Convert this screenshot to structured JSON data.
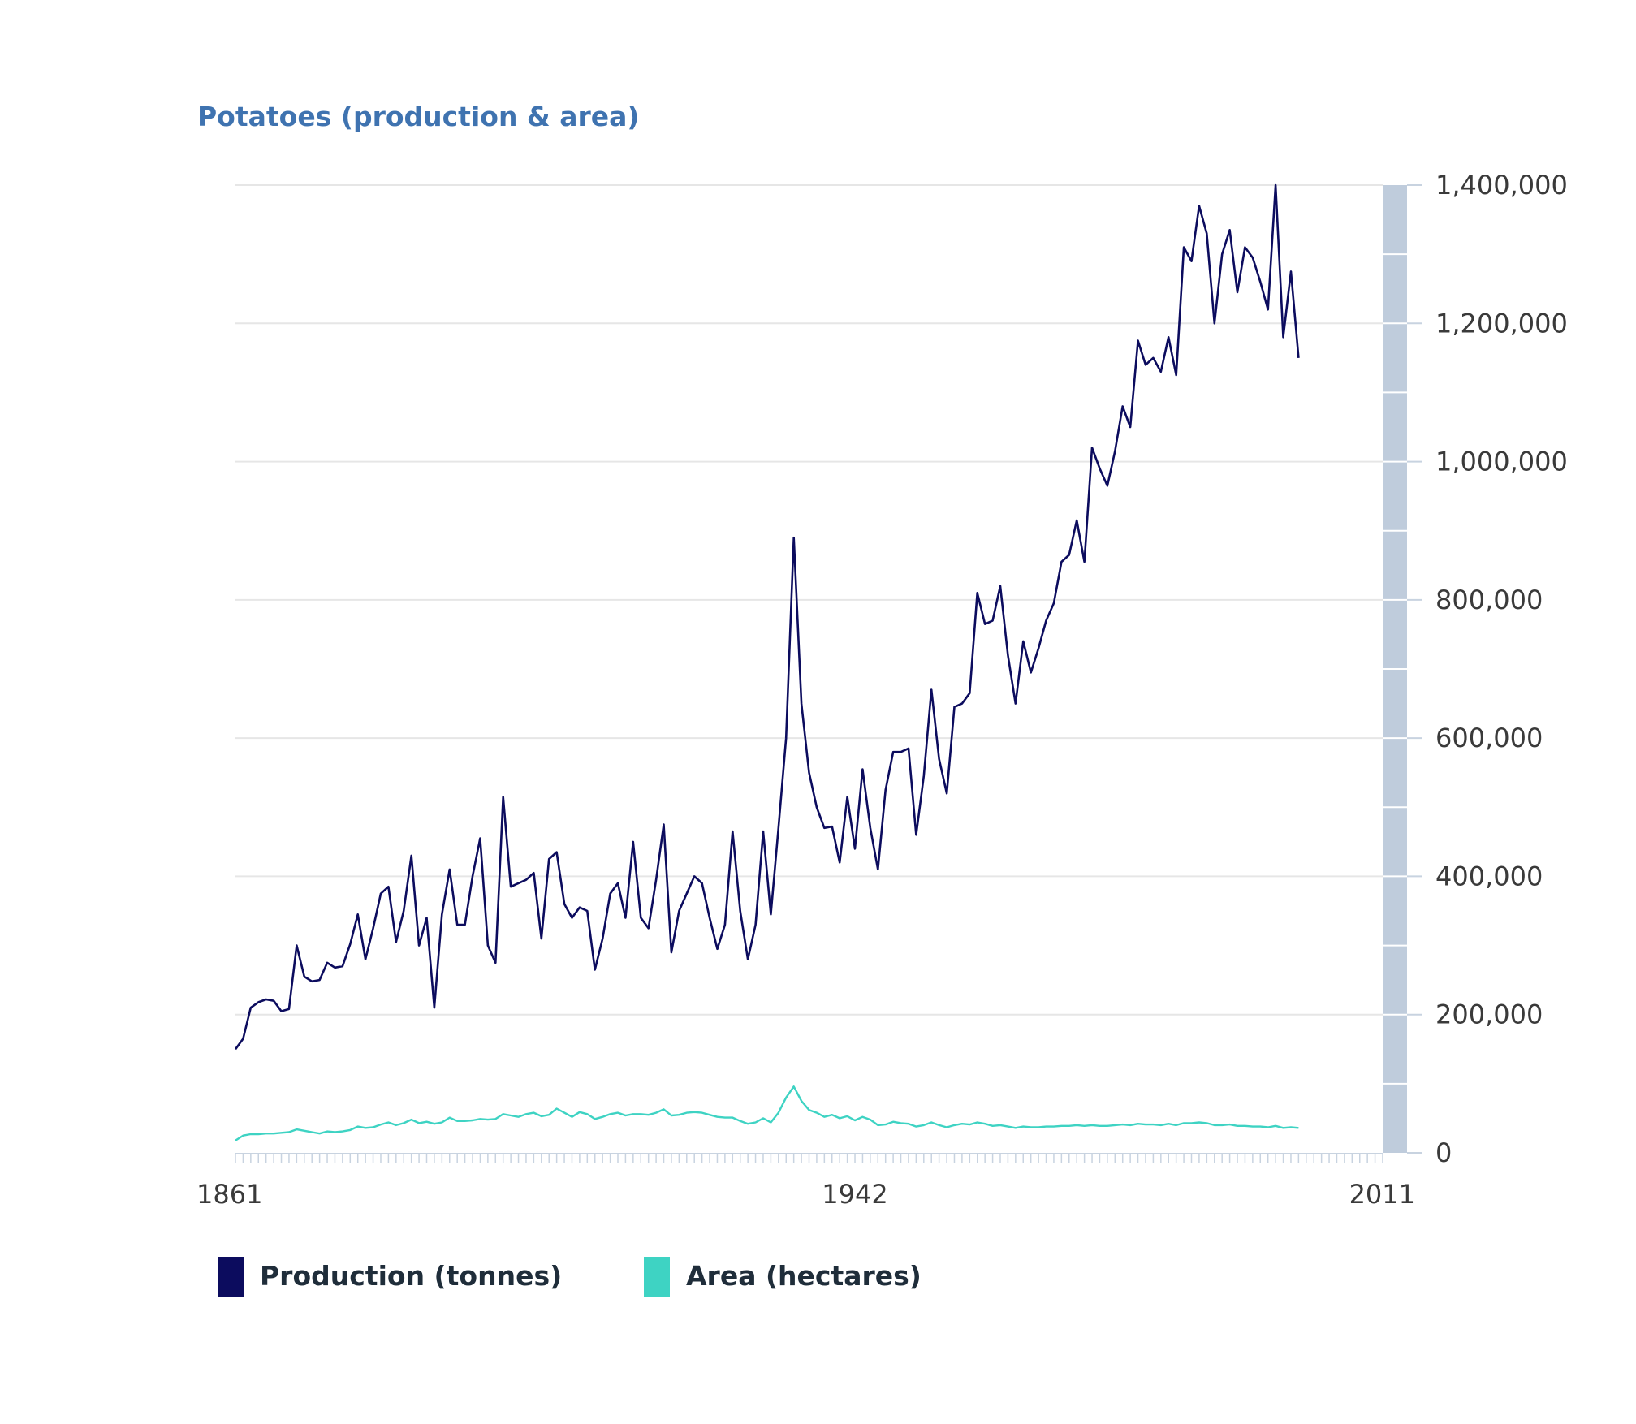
{
  "chart_data": {
    "type": "line",
    "title": "Potatoes (production & area)",
    "xlabel": "",
    "ylabel": "",
    "x_start": 1861,
    "x_end": 2011,
    "ylim": [
      0,
      1400000
    ],
    "y_ticks": [
      0,
      200000,
      400000,
      600000,
      800000,
      1000000,
      1200000,
      1400000
    ],
    "y_tick_labels": [
      "0",
      "200,000",
      "400,000",
      "600,000",
      "800,000",
      "1,000,000",
      "1,200,000",
      "1,400,000"
    ],
    "x_tick_labels": [
      {
        "label": "1861",
        "year": 1861
      },
      {
        "label": "1942",
        "year": 1942
      },
      {
        "label": "2011",
        "year": 2011
      }
    ],
    "grid": true,
    "legend_position": "bottom-left",
    "series": [
      {
        "name": "Production (tonnes)",
        "color": "#0c0c5e",
        "points": [
          [
            1861,
            150000
          ],
          [
            1862,
            165000
          ],
          [
            1863,
            210000
          ],
          [
            1864,
            218000
          ],
          [
            1865,
            222000
          ],
          [
            1866,
            220000
          ],
          [
            1867,
            205000
          ],
          [
            1868,
            208000
          ],
          [
            1869,
            300000
          ],
          [
            1870,
            255000
          ],
          [
            1871,
            248000
          ],
          [
            1872,
            250000
          ],
          [
            1873,
            275000
          ],
          [
            1874,
            268000
          ],
          [
            1875,
            270000
          ],
          [
            1876,
            302000
          ],
          [
            1877,
            345000
          ],
          [
            1878,
            280000
          ],
          [
            1879,
            325000
          ],
          [
            1880,
            375000
          ],
          [
            1881,
            385000
          ],
          [
            1882,
            305000
          ],
          [
            1883,
            350000
          ],
          [
            1884,
            430000
          ],
          [
            1885,
            300000
          ],
          [
            1886,
            340000
          ],
          [
            1887,
            210000
          ],
          [
            1888,
            345000
          ],
          [
            1889,
            410000
          ],
          [
            1890,
            330000
          ],
          [
            1891,
            330000
          ],
          [
            1892,
            400000
          ],
          [
            1893,
            455000
          ],
          [
            1894,
            300000
          ],
          [
            1895,
            275000
          ],
          [
            1896,
            515000
          ],
          [
            1897,
            385000
          ],
          [
            1898,
            390000
          ],
          [
            1899,
            395000
          ],
          [
            1900,
            405000
          ],
          [
            1901,
            310000
          ],
          [
            1902,
            425000
          ],
          [
            1903,
            435000
          ],
          [
            1904,
            360000
          ],
          [
            1905,
            340000
          ],
          [
            1906,
            355000
          ],
          [
            1907,
            350000
          ],
          [
            1908,
            265000
          ],
          [
            1909,
            310000
          ],
          [
            1910,
            375000
          ],
          [
            1911,
            390000
          ],
          [
            1912,
            340000
          ],
          [
            1913,
            450000
          ],
          [
            1914,
            340000
          ],
          [
            1915,
            325000
          ],
          [
            1916,
            395000
          ],
          [
            1917,
            475000
          ],
          [
            1918,
            290000
          ],
          [
            1919,
            350000
          ],
          [
            1920,
            375000
          ],
          [
            1921,
            400000
          ],
          [
            1922,
            390000
          ],
          [
            1923,
            340000
          ],
          [
            1924,
            295000
          ],
          [
            1925,
            330000
          ],
          [
            1926,
            465000
          ],
          [
            1927,
            350000
          ],
          [
            1928,
            280000
          ],
          [
            1929,
            330000
          ],
          [
            1930,
            465000
          ],
          [
            1931,
            345000
          ],
          [
            1932,
            470000
          ],
          [
            1933,
            600000
          ],
          [
            1934,
            890000
          ],
          [
            1935,
            650000
          ],
          [
            1936,
            550000
          ],
          [
            1937,
            500000
          ],
          [
            1938,
            470000
          ],
          [
            1939,
            472000
          ],
          [
            1940,
            420000
          ],
          [
            1941,
            515000
          ],
          [
            1942,
            440000
          ],
          [
            1943,
            555000
          ],
          [
            1944,
            470000
          ],
          [
            1945,
            410000
          ],
          [
            1946,
            525000
          ],
          [
            1947,
            580000
          ],
          [
            1948,
            580000
          ],
          [
            1949,
            585000
          ],
          [
            1950,
            460000
          ],
          [
            1951,
            545000
          ],
          [
            1952,
            670000
          ],
          [
            1953,
            570000
          ],
          [
            1954,
            520000
          ],
          [
            1955,
            645000
          ],
          [
            1956,
            650000
          ],
          [
            1957,
            665000
          ],
          [
            1958,
            810000
          ],
          [
            1959,
            765000
          ],
          [
            1960,
            770000
          ],
          [
            1961,
            820000
          ],
          [
            1962,
            720000
          ],
          [
            1963,
            650000
          ],
          [
            1964,
            740000
          ],
          [
            1965,
            695000
          ],
          [
            1966,
            730000
          ],
          [
            1967,
            770000
          ],
          [
            1968,
            795000
          ],
          [
            1969,
            855000
          ],
          [
            1970,
            865000
          ],
          [
            1971,
            915000
          ],
          [
            1972,
            855000
          ],
          [
            1973,
            1020000
          ],
          [
            1974,
            990000
          ],
          [
            1975,
            965000
          ],
          [
            1976,
            1015000
          ],
          [
            1977,
            1080000
          ],
          [
            1978,
            1050000
          ],
          [
            1979,
            1175000
          ],
          [
            1980,
            1140000
          ],
          [
            1981,
            1150000
          ],
          [
            1982,
            1130000
          ],
          [
            1983,
            1180000
          ],
          [
            1984,
            1125000
          ],
          [
            1985,
            1310000
          ],
          [
            1986,
            1290000
          ],
          [
            1987,
            1370000
          ],
          [
            1988,
            1330000
          ],
          [
            1989,
            1200000
          ],
          [
            1990,
            1300000
          ],
          [
            1991,
            1335000
          ],
          [
            1992,
            1245000
          ],
          [
            1993,
            1310000
          ],
          [
            1994,
            1295000
          ],
          [
            1995,
            1260000
          ],
          [
            1996,
            1220000
          ],
          [
            1997,
            1400000
          ],
          [
            1998,
            1180000
          ],
          [
            1999,
            1275000
          ],
          [
            2000,
            1150000
          ]
        ]
      },
      {
        "name": "Area (hectares)",
        "color": "#3ed3c3",
        "points": [
          [
            1861,
            18000
          ],
          [
            1862,
            25000
          ],
          [
            1863,
            27000
          ],
          [
            1864,
            27000
          ],
          [
            1865,
            28000
          ],
          [
            1866,
            28000
          ],
          [
            1867,
            29000
          ],
          [
            1868,
            30000
          ],
          [
            1869,
            34000
          ],
          [
            1870,
            32000
          ],
          [
            1871,
            30000
          ],
          [
            1872,
            28000
          ],
          [
            1873,
            31000
          ],
          [
            1874,
            30000
          ],
          [
            1875,
            31000
          ],
          [
            1876,
            33000
          ],
          [
            1877,
            38000
          ],
          [
            1878,
            36000
          ],
          [
            1879,
            37000
          ],
          [
            1880,
            41000
          ],
          [
            1881,
            44000
          ],
          [
            1882,
            40000
          ],
          [
            1883,
            43000
          ],
          [
            1884,
            48000
          ],
          [
            1885,
            43000
          ],
          [
            1886,
            45000
          ],
          [
            1887,
            42000
          ],
          [
            1888,
            44000
          ],
          [
            1889,
            51000
          ],
          [
            1890,
            46000
          ],
          [
            1891,
            46000
          ],
          [
            1892,
            47000
          ],
          [
            1893,
            49000
          ],
          [
            1894,
            48000
          ],
          [
            1895,
            49000
          ],
          [
            1896,
            56000
          ],
          [
            1897,
            54000
          ],
          [
            1898,
            52000
          ],
          [
            1899,
            56000
          ],
          [
            1900,
            58000
          ],
          [
            1901,
            53000
          ],
          [
            1902,
            55000
          ],
          [
            1903,
            64000
          ],
          [
            1904,
            58000
          ],
          [
            1905,
            52000
          ],
          [
            1906,
            59000
          ],
          [
            1907,
            56000
          ],
          [
            1908,
            49000
          ],
          [
            1909,
            52000
          ],
          [
            1910,
            56000
          ],
          [
            1911,
            58000
          ],
          [
            1912,
            54000
          ],
          [
            1913,
            56000
          ],
          [
            1914,
            56000
          ],
          [
            1915,
            55000
          ],
          [
            1916,
            58000
          ],
          [
            1917,
            63000
          ],
          [
            1918,
            54000
          ],
          [
            1919,
            55000
          ],
          [
            1920,
            58000
          ],
          [
            1921,
            59000
          ],
          [
            1922,
            58000
          ],
          [
            1923,
            55000
          ],
          [
            1924,
            52000
          ],
          [
            1925,
            51000
          ],
          [
            1926,
            51000
          ],
          [
            1927,
            46000
          ],
          [
            1928,
            42000
          ],
          [
            1929,
            44000
          ],
          [
            1930,
            50000
          ],
          [
            1931,
            44000
          ],
          [
            1932,
            58000
          ],
          [
            1933,
            80000
          ],
          [
            1934,
            96000
          ],
          [
            1935,
            75000
          ],
          [
            1936,
            62000
          ],
          [
            1937,
            58000
          ],
          [
            1938,
            52000
          ],
          [
            1939,
            55000
          ],
          [
            1940,
            50000
          ],
          [
            1941,
            53000
          ],
          [
            1942,
            47000
          ],
          [
            1943,
            52000
          ],
          [
            1944,
            48000
          ],
          [
            1945,
            40000
          ],
          [
            1946,
            41000
          ],
          [
            1947,
            45000
          ],
          [
            1948,
            43000
          ],
          [
            1949,
            42000
          ],
          [
            1950,
            38000
          ],
          [
            1951,
            40000
          ],
          [
            1952,
            44000
          ],
          [
            1953,
            40000
          ],
          [
            1954,
            37000
          ],
          [
            1955,
            40000
          ],
          [
            1956,
            42000
          ],
          [
            1957,
            41000
          ],
          [
            1958,
            44000
          ],
          [
            1959,
            42000
          ],
          [
            1960,
            39000
          ],
          [
            1961,
            40000
          ],
          [
            1962,
            38000
          ],
          [
            1963,
            36000
          ],
          [
            1964,
            38000
          ],
          [
            1965,
            37000
          ],
          [
            1966,
            37000
          ],
          [
            1967,
            38000
          ],
          [
            1968,
            38000
          ],
          [
            1969,
            39000
          ],
          [
            1970,
            39000
          ],
          [
            1971,
            40000
          ],
          [
            1972,
            39000
          ],
          [
            1973,
            40000
          ],
          [
            1974,
            39000
          ],
          [
            1975,
            39000
          ],
          [
            1976,
            40000
          ],
          [
            1977,
            41000
          ],
          [
            1978,
            40000
          ],
          [
            1979,
            42000
          ],
          [
            1980,
            41000
          ],
          [
            1981,
            41000
          ],
          [
            1982,
            40000
          ],
          [
            1983,
            42000
          ],
          [
            1984,
            40000
          ],
          [
            1985,
            43000
          ],
          [
            1986,
            43000
          ],
          [
            1987,
            44000
          ],
          [
            1988,
            43000
          ],
          [
            1989,
            40000
          ],
          [
            1990,
            40000
          ],
          [
            1991,
            41000
          ],
          [
            1992,
            39000
          ],
          [
            1993,
            39000
          ],
          [
            1994,
            38000
          ],
          [
            1995,
            38000
          ],
          [
            1996,
            37000
          ],
          [
            1997,
            39000
          ],
          [
            1998,
            36000
          ],
          [
            1999,
            37000
          ],
          [
            2000,
            36000
          ]
        ]
      }
    ]
  }
}
